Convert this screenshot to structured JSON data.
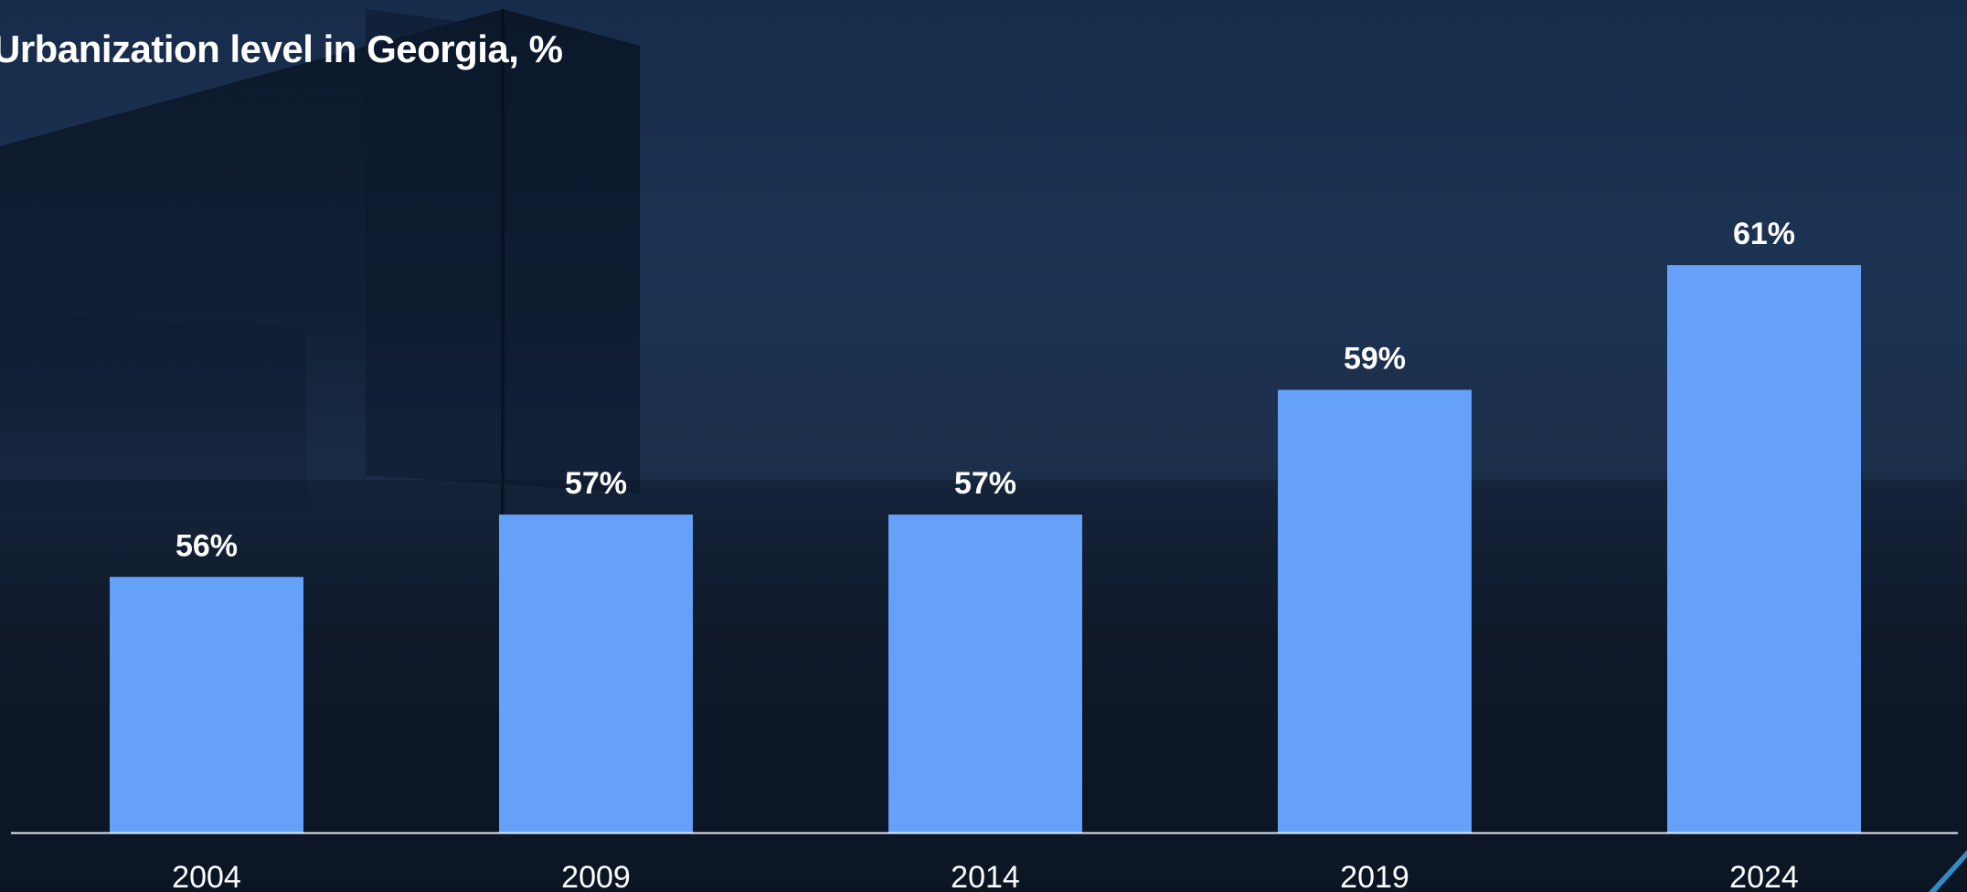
{
  "chart_data": {
    "type": "bar",
    "title": "Urbanization level in Georgia, %",
    "xlabel": "",
    "ylabel": "",
    "categories": [
      "2004",
      "2009",
      "2014",
      "2019",
      "2024"
    ],
    "values": [
      56,
      57,
      57,
      59,
      61
    ],
    "data_labels": [
      "56%",
      "57%",
      "57%",
      "59%",
      "61%"
    ],
    "ylim": [
      51.9,
      61.5
    ],
    "grid": false,
    "legend": "none",
    "colors": {
      "bar": "#65a0f9",
      "axis": "#e6ecf5",
      "text": "#ffffff"
    }
  }
}
